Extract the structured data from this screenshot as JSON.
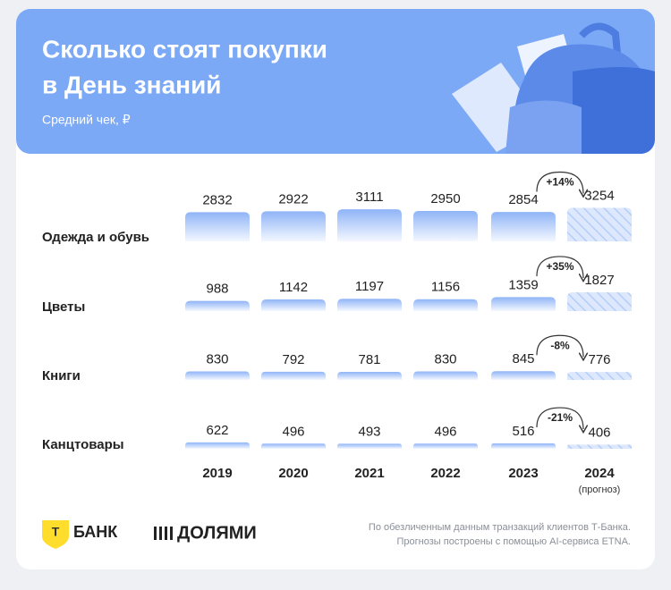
{
  "chart_data": {
    "type": "bar",
    "title_lines": [
      "Сколько стоят покупки",
      "в День знаний"
    ],
    "subtitle": "Средний чек, ₽",
    "categories": [
      "2019",
      "2020",
      "2021",
      "2022",
      "2023",
      "2024"
    ],
    "category_note": "(прогноз)",
    "forecast_index": 5,
    "ylim": [
      0,
      3300
    ],
    "color": "#8fb4f7",
    "series": [
      {
        "name": "Одежда и обувь",
        "values": [
          2832,
          2922,
          3111,
          2950,
          2854,
          3254
        ],
        "change": "+14%"
      },
      {
        "name": "Цветы",
        "values": [
          988,
          1142,
          1197,
          1156,
          1359,
          1827
        ],
        "change": "+35%"
      },
      {
        "name": "Книги",
        "values": [
          830,
          792,
          781,
          830,
          845,
          776
        ],
        "change": "-8%"
      },
      {
        "name": "Канцтовары",
        "values": [
          622,
          496,
          493,
          496,
          516,
          406
        ],
        "change": "-21%"
      }
    ]
  },
  "footer": {
    "bank": "БАНК",
    "logo_letter": "Т",
    "dolyami": "ДОЛЯМИ",
    "note_lines": [
      "По обезличенным данным транзакций клиентов Т-Банка.",
      "Прогнозы построены с помощью AI-сервиса ETNA."
    ]
  }
}
